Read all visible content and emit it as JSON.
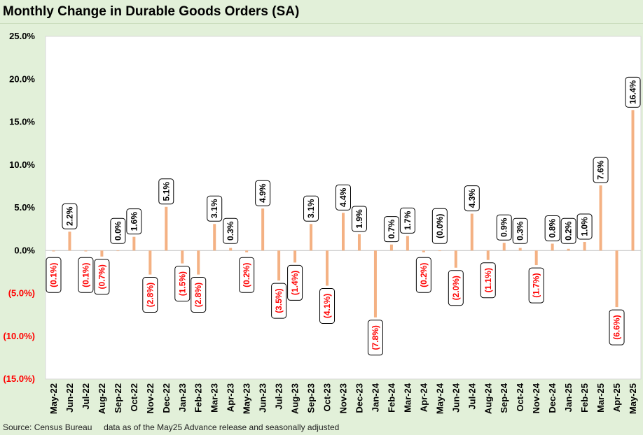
{
  "chart_data": {
    "type": "bar",
    "title": "Monthly Change in Durable Goods Orders (SA)",
    "categories": [
      "May-22",
      "Jun-22",
      "Jul-22",
      "Aug-22",
      "Sep-22",
      "Oct-22",
      "Nov-22",
      "Dec-22",
      "Jan-23",
      "Feb-23",
      "Mar-23",
      "Apr-23",
      "May-23",
      "Jun-23",
      "Jul-23",
      "Aug-23",
      "Sep-23",
      "Oct-23",
      "Nov-23",
      "Dec-23",
      "Jan-24",
      "Feb-24",
      "Mar-24",
      "Apr-24",
      "May-24",
      "Jun-24",
      "Jul-24",
      "Aug-24",
      "Sep-24",
      "Oct-24",
      "Nov-24",
      "Dec-24",
      "Jan-25",
      "Feb-25",
      "Mar-25",
      "Apr-25",
      "May-25"
    ],
    "values": [
      -0.1,
      2.2,
      -0.1,
      -0.7,
      0.0,
      1.6,
      -2.8,
      5.1,
      -1.5,
      -2.8,
      3.1,
      0.3,
      -0.2,
      4.9,
      -3.5,
      -1.4,
      3.1,
      -4.1,
      4.4,
      1.9,
      -7.8,
      0.7,
      1.7,
      -0.2,
      -0.0,
      -2.0,
      4.3,
      -1.1,
      0.9,
      0.3,
      -1.7,
      0.8,
      0.2,
      1.0,
      7.6,
      -6.6,
      16.4
    ],
    "data_labels": [
      "(0.1%)",
      "2.2%",
      "(0.1%)",
      "(0.7%)",
      "0.0%",
      "1.6%",
      "(2.8%)",
      "5.1%",
      "(1.5%)",
      "(2.8%)",
      "3.1%",
      "0.3%",
      "(0.2%)",
      "4.9%",
      "(3.5%)",
      "(1.4%)",
      "3.1%",
      "(4.1%)",
      "4.4%",
      "1.9%",
      "(7.8%)",
      "0.7%",
      "1.7%",
      "(0.2%)",
      "(0.0%)",
      "(2.0%)",
      "4.3%",
      "(1.1%)",
      "0.9%",
      "0.3%",
      "(1.7%)",
      "0.8%",
      "0.2%",
      "1.0%",
      "7.6%",
      "(6.6%)",
      "16.4%"
    ],
    "ylim": [
      -15,
      25
    ],
    "yticks": [
      25,
      20,
      15,
      10,
      5,
      0,
      -5,
      -10,
      -15
    ],
    "ytick_labels": [
      "25.0%",
      "20.0%",
      "15.0%",
      "10.0%",
      "5.0%",
      "0.0%",
      "(5.0%)",
      "(10.0%)",
      "(15.0%)"
    ],
    "xlabel": "",
    "ylabel": "",
    "grid": false,
    "colors": {
      "bar": "#f4b183",
      "positive_label": "#000000",
      "negative_label": "#ff0000",
      "background": "#e2f0d9",
      "plot_background": "#ffffff"
    }
  },
  "footer": {
    "source": "Source: Census Bureau     data as of the May25 Advance release and seasonally adjusted"
  }
}
